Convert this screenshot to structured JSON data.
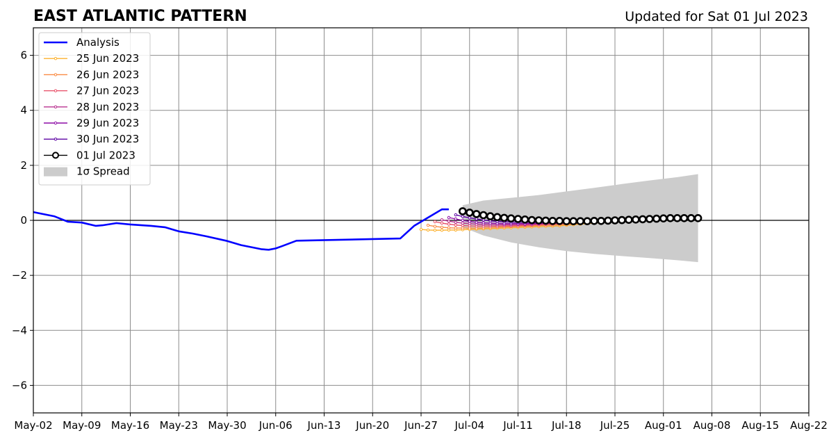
{
  "header": {
    "title": "EAST ATLANTIC PATTERN",
    "updated": "Updated for Sat 01 Jul 2023"
  },
  "chart_data": {
    "type": "line",
    "title": "EAST ATLANTIC PATTERN",
    "subtitle": "Updated for Sat 01 Jul 2023",
    "xlabel": "",
    "ylabel": "",
    "xlim": [
      "2023-05-02",
      "2023-08-22"
    ],
    "ylim": [
      -7,
      7
    ],
    "grid": true,
    "legend_position": "top-left",
    "x_ticks": [
      "May-02",
      "May-09",
      "May-16",
      "May-23",
      "May-30",
      "Jun-06",
      "Jun-13",
      "Jun-20",
      "Jun-27",
      "Jul-04",
      "Jul-11",
      "Jul-18",
      "Jul-25",
      "Aug-01",
      "Aug-08",
      "Aug-15",
      "Aug-22"
    ],
    "y_ticks": [
      6,
      4,
      2,
      0,
      -2,
      -4,
      -6
    ],
    "y_tick_labels": [
      "6",
      "4",
      "2",
      "0",
      "−2",
      "−4",
      "−6"
    ],
    "zero_line": 0,
    "series": [
      {
        "name": "Analysis",
        "color": "#0000ff",
        "x": [
          "2023-05-02",
          "2023-05-05",
          "2023-05-07",
          "2023-05-09",
          "2023-05-11",
          "2023-05-12",
          "2023-05-14",
          "2023-05-16",
          "2023-05-19",
          "2023-05-21",
          "2023-05-23",
          "2023-05-25",
          "2023-05-27",
          "2023-05-30",
          "2023-06-01",
          "2023-06-03",
          "2023-06-04",
          "2023-06-05",
          "2023-06-06",
          "2023-06-07",
          "2023-06-09",
          "2023-06-24",
          "2023-06-26",
          "2023-06-28",
          "2023-06-30",
          "2023-07-01"
        ],
        "y": [
          0.3,
          0.15,
          -0.05,
          -0.08,
          -0.2,
          -0.18,
          -0.1,
          -0.15,
          -0.2,
          -0.25,
          -0.4,
          -0.48,
          -0.58,
          -0.75,
          -0.9,
          -1.0,
          -1.05,
          -1.07,
          -1.02,
          -0.93,
          -0.74,
          -0.66,
          -0.2,
          0.1,
          0.4,
          0.4
        ]
      },
      {
        "name": "25 Jun 2023",
        "color": "#fcb12e",
        "x": [
          "2023-06-27",
          "2023-06-28",
          "2023-06-29",
          "2023-06-30",
          "2023-07-01",
          "2023-07-02",
          "2023-07-03",
          "2023-07-04",
          "2023-07-05",
          "2023-07-06",
          "2023-07-07",
          "2023-07-08",
          "2023-07-09",
          "2023-07-10",
          "2023-07-11",
          "2023-07-12",
          "2023-07-13",
          "2023-07-14",
          "2023-07-15",
          "2023-07-16",
          "2023-07-17",
          "2023-07-18",
          "2023-07-19",
          "2023-07-20",
          "2023-07-21",
          "2023-07-22",
          "2023-07-23",
          "2023-07-24",
          "2023-07-25"
        ],
        "y": [
          -0.33,
          -0.35,
          -0.36,
          -0.36,
          -0.35,
          -0.35,
          -0.34,
          -0.33,
          -0.32,
          -0.31,
          -0.3,
          -0.29,
          -0.28,
          -0.27,
          -0.26,
          -0.25,
          -0.24,
          -0.23,
          -0.22,
          -0.21,
          -0.2,
          -0.18,
          -0.16,
          -0.14,
          -0.12,
          -0.1,
          -0.08,
          -0.06,
          -0.04
        ]
      },
      {
        "name": "26 Jun 2023",
        "color": "#f98b43",
        "x": [
          "2023-06-28",
          "2023-06-29",
          "2023-06-30",
          "2023-07-01",
          "2023-07-02",
          "2023-07-03",
          "2023-07-04",
          "2023-07-05",
          "2023-07-06",
          "2023-07-07",
          "2023-07-08",
          "2023-07-09",
          "2023-07-10",
          "2023-07-11",
          "2023-07-12",
          "2023-07-13",
          "2023-07-14",
          "2023-07-15",
          "2023-07-16",
          "2023-07-17",
          "2023-07-18",
          "2023-07-19",
          "2023-07-20",
          "2023-07-21",
          "2023-07-22",
          "2023-07-23",
          "2023-07-24",
          "2023-07-25",
          "2023-07-26"
        ],
        "y": [
          -0.18,
          -0.22,
          -0.25,
          -0.27,
          -0.28,
          -0.28,
          -0.28,
          -0.28,
          -0.27,
          -0.26,
          -0.25,
          -0.24,
          -0.23,
          -0.22,
          -0.21,
          -0.2,
          -0.19,
          -0.18,
          -0.17,
          -0.16,
          -0.15,
          -0.13,
          -0.11,
          -0.09,
          -0.07,
          -0.05,
          -0.04,
          -0.03,
          -0.02
        ]
      },
      {
        "name": "27 Jun 2023",
        "color": "#e8526a",
        "x": [
          "2023-06-29",
          "2023-06-30",
          "2023-07-01",
          "2023-07-02",
          "2023-07-03",
          "2023-07-04",
          "2023-07-05",
          "2023-07-06",
          "2023-07-07",
          "2023-07-08",
          "2023-07-09",
          "2023-07-10",
          "2023-07-11",
          "2023-07-12",
          "2023-07-13",
          "2023-07-14",
          "2023-07-15",
          "2023-07-16",
          "2023-07-17",
          "2023-07-18",
          "2023-07-19",
          "2023-07-20",
          "2023-07-21",
          "2023-07-22",
          "2023-07-23",
          "2023-07-24",
          "2023-07-25",
          "2023-07-26",
          "2023-07-27"
        ],
        "y": [
          -0.05,
          -0.1,
          -0.14,
          -0.17,
          -0.19,
          -0.2,
          -0.21,
          -0.21,
          -0.21,
          -0.21,
          -0.2,
          -0.2,
          -0.19,
          -0.18,
          -0.17,
          -0.16,
          -0.15,
          -0.14,
          -0.13,
          -0.12,
          -0.11,
          -0.1,
          -0.08,
          -0.07,
          -0.05,
          -0.04,
          -0.03,
          -0.02,
          -0.01
        ]
      },
      {
        "name": "28 Jun 2023",
        "color": "#b8318f",
        "x": [
          "2023-06-30",
          "2023-07-01",
          "2023-07-02",
          "2023-07-03",
          "2023-07-04",
          "2023-07-05",
          "2023-07-06",
          "2023-07-07",
          "2023-07-08",
          "2023-07-09",
          "2023-07-10",
          "2023-07-11",
          "2023-07-12",
          "2023-07-13",
          "2023-07-14",
          "2023-07-15",
          "2023-07-16",
          "2023-07-17",
          "2023-07-18",
          "2023-07-19",
          "2023-07-20",
          "2023-07-21",
          "2023-07-22",
          "2023-07-23",
          "2023-07-24",
          "2023-07-25",
          "2023-07-26",
          "2023-07-27",
          "2023-07-28"
        ],
        "y": [
          0.02,
          -0.03,
          -0.07,
          -0.1,
          -0.12,
          -0.14,
          -0.15,
          -0.16,
          -0.16,
          -0.16,
          -0.16,
          -0.15,
          -0.15,
          -0.14,
          -0.13,
          -0.12,
          -0.11,
          -0.1,
          -0.09,
          -0.08,
          -0.07,
          -0.06,
          -0.05,
          -0.04,
          -0.03,
          -0.02,
          -0.01,
          0.0,
          0.0
        ]
      },
      {
        "name": "29 Jun 2023",
        "color": "#8b0aa5",
        "x": [
          "2023-07-01",
          "2023-07-02",
          "2023-07-03",
          "2023-07-04",
          "2023-07-05",
          "2023-07-06",
          "2023-07-07",
          "2023-07-08",
          "2023-07-09",
          "2023-07-10",
          "2023-07-11",
          "2023-07-12",
          "2023-07-13",
          "2023-07-14",
          "2023-07-15",
          "2023-07-16",
          "2023-07-17",
          "2023-07-18",
          "2023-07-19",
          "2023-07-20",
          "2023-07-21",
          "2023-07-22",
          "2023-07-23",
          "2023-07-24",
          "2023-07-25",
          "2023-07-26",
          "2023-07-27",
          "2023-07-28",
          "2023-07-29"
        ],
        "y": [
          0.1,
          0.05,
          0.0,
          -0.04,
          -0.07,
          -0.09,
          -0.1,
          -0.11,
          -0.12,
          -0.12,
          -0.12,
          -0.12,
          -0.11,
          -0.11,
          -0.1,
          -0.09,
          -0.08,
          -0.07,
          -0.06,
          -0.05,
          -0.04,
          -0.03,
          -0.02,
          -0.01,
          0.0,
          0.0,
          0.01,
          0.01,
          0.02
        ]
      },
      {
        "name": "30 Jun 2023",
        "color": "#5c02a3",
        "x": [
          "2023-07-02",
          "2023-07-03",
          "2023-07-04",
          "2023-07-05",
          "2023-07-06",
          "2023-07-07",
          "2023-07-08",
          "2023-07-09",
          "2023-07-10",
          "2023-07-11",
          "2023-07-12",
          "2023-07-13",
          "2023-07-14",
          "2023-07-15",
          "2023-07-16",
          "2023-07-17",
          "2023-07-18",
          "2023-07-19",
          "2023-07-20",
          "2023-07-21",
          "2023-07-22",
          "2023-07-23",
          "2023-07-24",
          "2023-07-25",
          "2023-07-26",
          "2023-07-27",
          "2023-07-28",
          "2023-07-29",
          "2023-07-30"
        ],
        "y": [
          0.2,
          0.14,
          0.09,
          0.05,
          0.01,
          -0.02,
          -0.04,
          -0.05,
          -0.06,
          -0.07,
          -0.07,
          -0.07,
          -0.07,
          -0.06,
          -0.06,
          -0.05,
          -0.05,
          -0.04,
          -0.03,
          -0.02,
          -0.01,
          0.0,
          0.0,
          0.01,
          0.01,
          0.02,
          0.02,
          0.03,
          0.03
        ]
      },
      {
        "name": "01 Jul 2023",
        "color": "#000000",
        "x": [
          "2023-07-03",
          "2023-07-04",
          "2023-07-05",
          "2023-07-06",
          "2023-07-07",
          "2023-07-08",
          "2023-07-09",
          "2023-07-10",
          "2023-07-11",
          "2023-07-12",
          "2023-07-13",
          "2023-07-14",
          "2023-07-15",
          "2023-07-16",
          "2023-07-17",
          "2023-07-18",
          "2023-07-19",
          "2023-07-20",
          "2023-07-21",
          "2023-07-22",
          "2023-07-23",
          "2023-07-24",
          "2023-07-25",
          "2023-07-26",
          "2023-07-27",
          "2023-07-28",
          "2023-07-29",
          "2023-07-30",
          "2023-07-31",
          "2023-08-01",
          "2023-08-02",
          "2023-08-03",
          "2023-08-04",
          "2023-08-05",
          "2023-08-06"
        ],
        "y": [
          0.33,
          0.28,
          0.23,
          0.19,
          0.15,
          0.12,
          0.09,
          0.07,
          0.05,
          0.03,
          0.01,
          0.0,
          -0.01,
          -0.02,
          -0.02,
          -0.03,
          -0.03,
          -0.03,
          -0.03,
          -0.02,
          -0.02,
          -0.01,
          0.0,
          0.01,
          0.02,
          0.03,
          0.04,
          0.05,
          0.06,
          0.07,
          0.08,
          0.08,
          0.08,
          0.08,
          0.08
        ]
      }
    ],
    "spread": {
      "name": "1σ Spread",
      "color": "#cccccc",
      "x": [
        "2023-07-03",
        "2023-07-06",
        "2023-07-10",
        "2023-07-14",
        "2023-07-18",
        "2023-07-22",
        "2023-07-26",
        "2023-07-30",
        "2023-08-03",
        "2023-08-06"
      ],
      "upper": [
        0.55,
        0.72,
        0.82,
        0.92,
        1.05,
        1.18,
        1.32,
        1.45,
        1.57,
        1.68
      ],
      "lower": [
        -0.25,
        -0.55,
        -0.8,
        -0.98,
        -1.12,
        -1.22,
        -1.3,
        -1.37,
        -1.45,
        -1.52
      ]
    }
  }
}
